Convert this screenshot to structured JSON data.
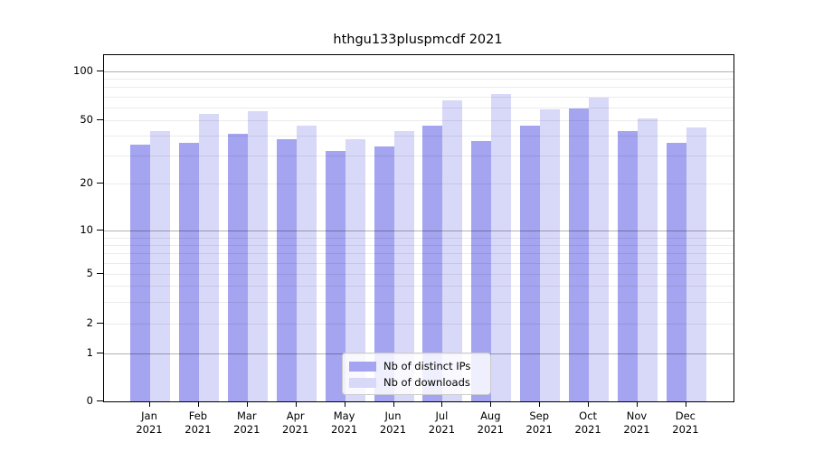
{
  "chart_data": {
    "type": "bar",
    "title": "hthgu133pluspmcdf 2021",
    "categories": [
      "Jan",
      "Feb",
      "Mar",
      "Apr",
      "May",
      "Jun",
      "Jul",
      "Aug",
      "Sep",
      "Oct",
      "Nov",
      "Dec"
    ],
    "category_year": "2021",
    "series": [
      {
        "name": "Nb of distinct IPs",
        "color": "#a4a4f0",
        "values": [
          35,
          36,
          41,
          38,
          32,
          34,
          46,
          37,
          46,
          59,
          43,
          36
        ]
      },
      {
        "name": "Nb of downloads",
        "color": "#d8d8f8",
        "values": [
          43,
          55,
          57,
          46,
          38,
          43,
          66,
          73,
          58,
          69,
          51,
          45
        ]
      }
    ],
    "xlabel": "",
    "ylabel": "",
    "yscale": "symlog",
    "ylim": [
      0,
      130
    ],
    "ytick_labels": [
      "100",
      "50",
      "20",
      "10",
      "5",
      "2",
      "1",
      "0"
    ],
    "grid": true,
    "major_gridline_values": [
      100,
      10,
      1
    ],
    "minor_gridline_values": [
      90,
      80,
      70,
      60,
      50,
      40,
      30,
      20,
      9,
      8,
      7,
      6,
      5,
      4,
      3,
      2
    ],
    "legend_position": "lower center inside plot",
    "layout": {
      "value_anchor_fracs": [
        [
          100,
          0.047
        ],
        [
          50,
          0.188
        ],
        [
          20,
          0.3708
        ],
        [
          10,
          0.5078
        ],
        [
          5,
          0.6319
        ],
        [
          2,
          0.7755
        ],
        [
          1,
          0.8629
        ],
        [
          0,
          1.0
        ]
      ]
    },
    "colors": {
      "text": "#000000",
      "spine": "#000000",
      "background": "#ffffff",
      "minor_grid": "rgba(0,0,0,0.08)",
      "major_grid": "rgba(0,0,0,0.30)"
    }
  }
}
